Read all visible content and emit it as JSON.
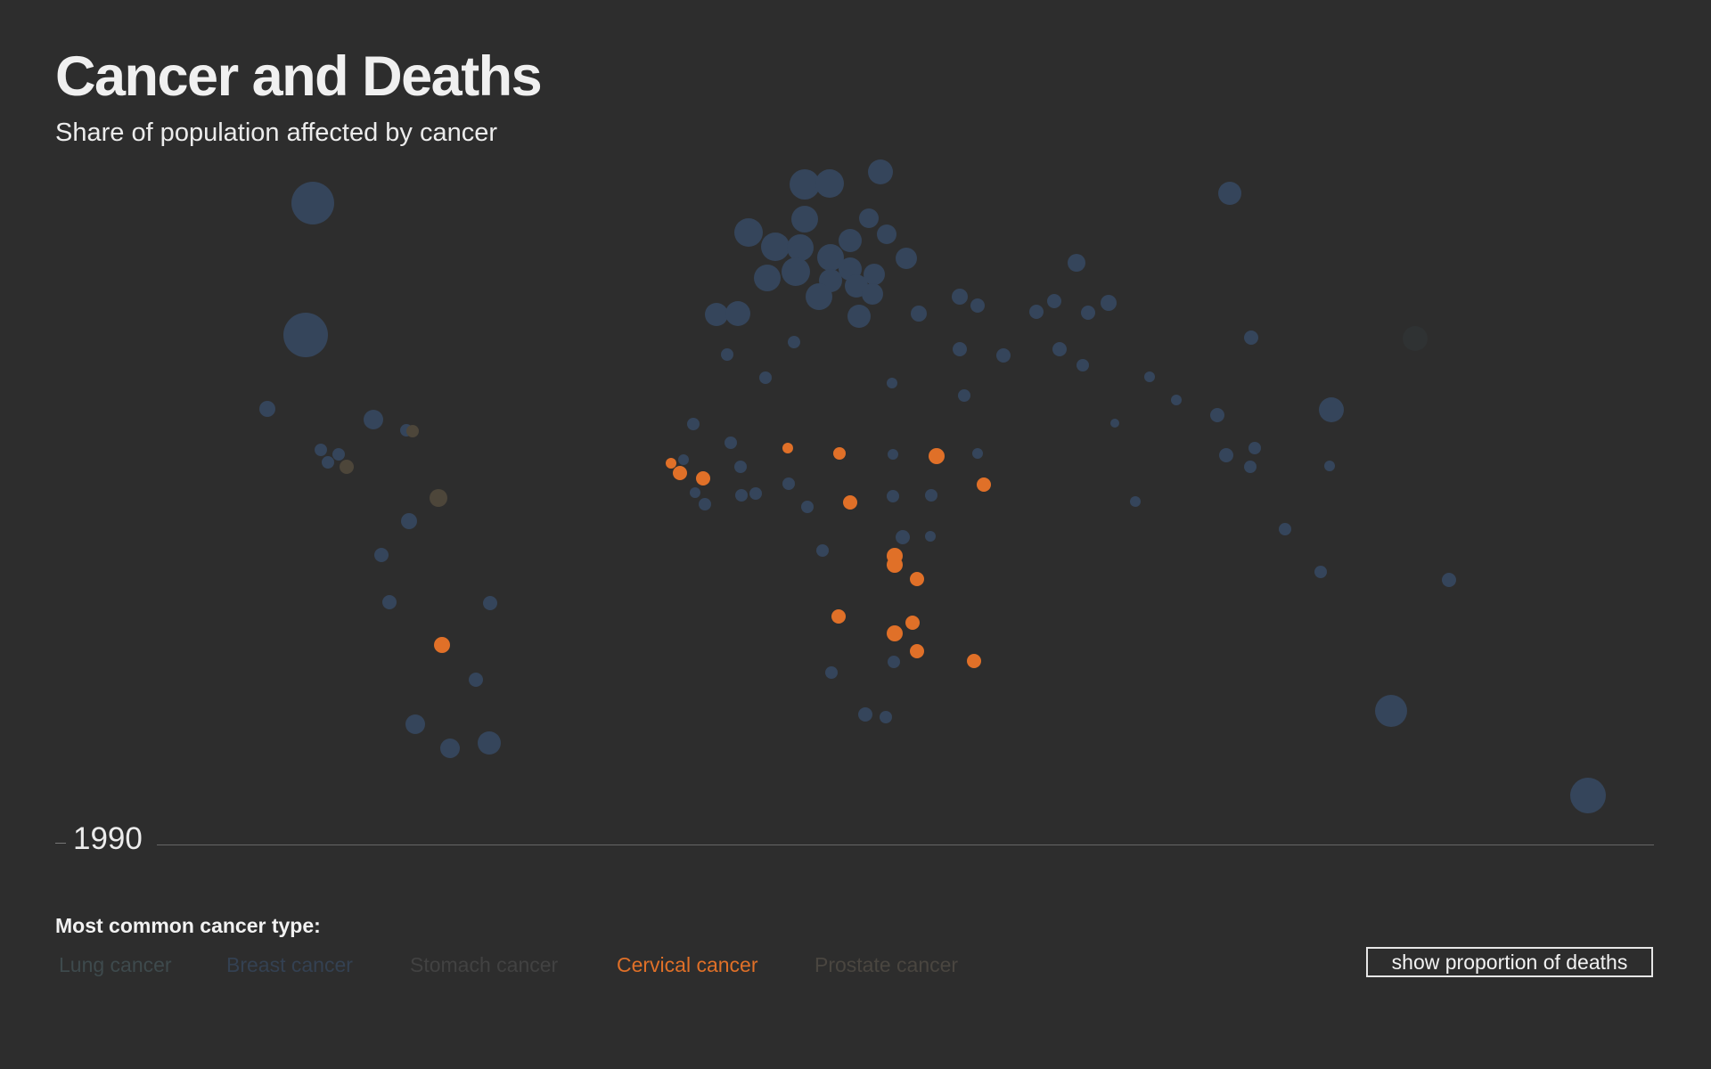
{
  "header": {
    "title": "Cancer and Deaths",
    "subtitle": "Share of population affected by cancer"
  },
  "timeline": {
    "year": "1990"
  },
  "legend": {
    "heading": "Most common cancer type:",
    "items": [
      {
        "label": "Lung cancer",
        "color": "#3e4a4d"
      },
      {
        "label": "Breast cancer",
        "color": "#344152"
      },
      {
        "label": "Stomach cancer",
        "color": "#424242"
      },
      {
        "label": "Cervical cancer",
        "color": "#e07028"
      },
      {
        "label": "Prostate cancer",
        "color": "#4a4640"
      }
    ],
    "active": "Cervical cancer"
  },
  "toggle": {
    "label": "show proportion of deaths"
  },
  "colors": {
    "background": "#2d2d2d",
    "highlight": "#e07028",
    "dimmed_blue": "#35455b",
    "dimmed_brown": "#4d463a"
  },
  "chart_data": {
    "type": "scatter",
    "title": "Cancer and Deaths",
    "subtitle": "Share of population affected by cancer",
    "year": 1990,
    "encoding": "bubble map: one circle per country, color = most common cancer type, size = share of population affected",
    "series": [
      {
        "name": "Breast cancer",
        "color": "#35455b",
        "count": 94
      },
      {
        "name": "Stomach cancer",
        "color": "#4d463a",
        "count": 4
      },
      {
        "name": "Cervical cancer",
        "color": "#e07028",
        "count": 22
      },
      {
        "name": "Lung cancer",
        "color": "#2f3233",
        "count": 1
      }
    ]
  }
}
